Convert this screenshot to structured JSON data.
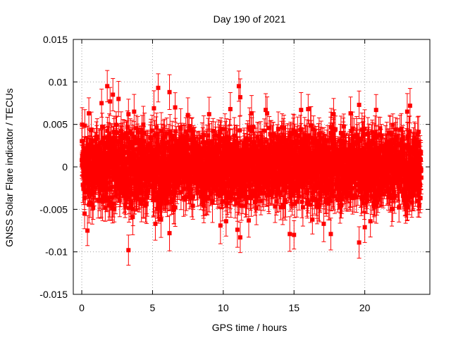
{
  "chart_data": {
    "type": "scatter",
    "title": "Day 190 of 2021",
    "xlabel": "GPS time / hours",
    "ylabel": "GNSS Solar Flare indicator / TECUs",
    "xlim": [
      -0.6,
      24.6
    ],
    "ylim": [
      -0.015,
      0.015
    ],
    "x_ticks": [
      0,
      5,
      10,
      15,
      20
    ],
    "x_tick_labels": [
      "0",
      "5",
      "10",
      "15",
      "20"
    ],
    "y_ticks": [
      -0.015,
      -0.01,
      -0.005,
      0,
      0.005,
      0.01,
      0.015
    ],
    "y_tick_labels": [
      "-0.015",
      "-0.01",
      "-0.005",
      "0",
      "0.005",
      "0.01",
      "0.015"
    ],
    "grid": true,
    "marker": "square",
    "error_bars": true,
    "series_color": "#ff0000",
    "sampling_interval_hours": 0.0083,
    "typical_error": 0.0018,
    "bulk_range": [
      -0.005,
      0.005
    ],
    "notable_points": [
      {
        "x": 1.8,
        "y": 0.0095
      },
      {
        "x": 2.2,
        "y": 0.0085
      },
      {
        "x": 2.0,
        "y": 0.0077
      },
      {
        "x": 2.6,
        "y": 0.008
      },
      {
        "x": 1.4,
        "y": 0.0075
      },
      {
        "x": 0.5,
        "y": 0.0063
      },
      {
        "x": 3.3,
        "y": 0.0062
      },
      {
        "x": 3.7,
        "y": 0.0065
      },
      {
        "x": 5.4,
        "y": 0.0093
      },
      {
        "x": 6.2,
        "y": 0.0088
      },
      {
        "x": 5.1,
        "y": 0.0069
      },
      {
        "x": 6.6,
        "y": 0.007
      },
      {
        "x": 7.5,
        "y": 0.0061
      },
      {
        "x": 9.0,
        "y": 0.0062
      },
      {
        "x": 10.5,
        "y": 0.0068
      },
      {
        "x": 11.1,
        "y": 0.0095
      },
      {
        "x": 11.2,
        "y": 0.0082
      },
      {
        "x": 12.0,
        "y": 0.0063
      },
      {
        "x": 13.1,
        "y": 0.0063
      },
      {
        "x": 13.0,
        "y": 0.0067
      },
      {
        "x": 15.5,
        "y": 0.0067
      },
      {
        "x": 16.0,
        "y": 0.0068
      },
      {
        "x": 17.8,
        "y": 0.0062
      },
      {
        "x": 19.0,
        "y": 0.0063
      },
      {
        "x": 19.6,
        "y": 0.0073
      },
      {
        "x": 20.8,
        "y": 0.0067
      },
      {
        "x": 23.2,
        "y": 0.0072
      },
      {
        "x": 23.0,
        "y": 0.0065
      },
      {
        "x": 0.2,
        "y": -0.0055
      },
      {
        "x": 0.4,
        "y": -0.0075
      },
      {
        "x": 3.3,
        "y": -0.0098
      },
      {
        "x": 3.6,
        "y": -0.0059
      },
      {
        "x": 5.2,
        "y": -0.0067
      },
      {
        "x": 5.6,
        "y": -0.0062
      },
      {
        "x": 6.2,
        "y": -0.0078
      },
      {
        "x": 9.8,
        "y": -0.0069
      },
      {
        "x": 10.2,
        "y": -0.0064
      },
      {
        "x": 11.2,
        "y": -0.0083
      },
      {
        "x": 11.0,
        "y": -0.0074
      },
      {
        "x": 11.8,
        "y": -0.0063
      },
      {
        "x": 14.7,
        "y": -0.0079
      },
      {
        "x": 15.0,
        "y": -0.008
      },
      {
        "x": 17.1,
        "y": -0.0067
      },
      {
        "x": 17.6,
        "y": -0.0079
      },
      {
        "x": 19.6,
        "y": -0.0089
      },
      {
        "x": 20.0,
        "y": -0.0071
      },
      {
        "x": 20.4,
        "y": -0.0064
      },
      {
        "x": 16.3,
        "y": -0.0062
      }
    ]
  }
}
